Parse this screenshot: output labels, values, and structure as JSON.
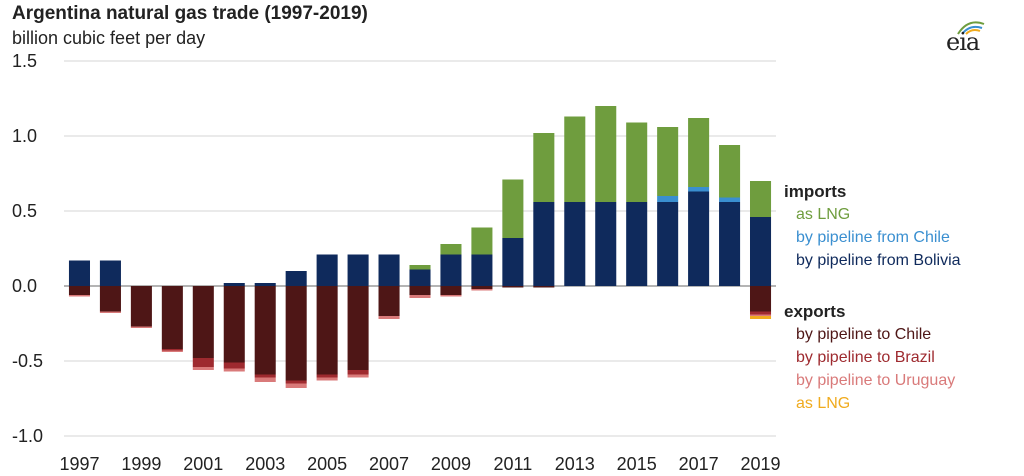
{
  "header": {
    "title": "Argentina natural gas trade (1997-2019)",
    "subtitle": "billion cubic feet per day",
    "logo_text": "eia"
  },
  "legend": {
    "imports_label": "imports",
    "exports_label": "exports",
    "imports": [
      {
        "label": "as LNG",
        "color": "#6f9d3e"
      },
      {
        "label": "by pipeline from Chile",
        "color": "#3a8fd0"
      },
      {
        "label": "by pipeline from Bolivia",
        "color": "#0f2a5c"
      }
    ],
    "exports": [
      {
        "label": "by pipeline to Chile",
        "color": "#4e1616"
      },
      {
        "label": "by pipeline to Brazil",
        "color": "#9e2a2f"
      },
      {
        "label": "by pipeline to Uruguay",
        "color": "#d97a7a"
      },
      {
        "label": "as LNG",
        "color": "#f0ab1e"
      }
    ]
  },
  "chart_data": {
    "type": "bar",
    "stacked": true,
    "title": "Argentina natural gas trade (1997-2019)",
    "ylabel": "billion cubic feet per day",
    "ylim": [
      -1.0,
      1.5
    ],
    "yticks": [
      1.5,
      1.0,
      0.5,
      0.0,
      -0.5,
      -1.0
    ],
    "ytick_labels": [
      "1.5",
      "1.0",
      "0.5",
      "0.0",
      "-0.5",
      "-1.0"
    ],
    "categories": [
      "1997",
      "1998",
      "1999",
      "2000",
      "2001",
      "2002",
      "2003",
      "2004",
      "2005",
      "2006",
      "2007",
      "2008",
      "2009",
      "2010",
      "2011",
      "2012",
      "2013",
      "2014",
      "2015",
      "2016",
      "2017",
      "2018",
      "2019"
    ],
    "xtick_labels": [
      "1997",
      "1999",
      "2001",
      "2003",
      "2005",
      "2007",
      "2009",
      "2011",
      "2013",
      "2015",
      "2017",
      "2019"
    ],
    "imports_series": [
      {
        "name": "by pipeline from Bolivia",
        "color": "#0f2a5c",
        "values": [
          0.17,
          0.17,
          0,
          0,
          0,
          0.02,
          0.02,
          0.1,
          0.21,
          0.21,
          0.21,
          0.11,
          0.21,
          0.21,
          0.32,
          0.56,
          0.56,
          0.56,
          0.56,
          0.56,
          0.63,
          0.56,
          0.46
        ]
      },
      {
        "name": "by pipeline from Chile",
        "color": "#3a8fd0",
        "values": [
          0,
          0,
          0,
          0,
          0,
          0,
          0,
          0,
          0,
          0,
          0,
          0,
          0,
          0,
          0,
          0,
          0,
          0,
          0,
          0.04,
          0.03,
          0.03,
          0
        ]
      },
      {
        "name": "as LNG",
        "color": "#6f9d3e",
        "values": [
          0,
          0,
          0,
          0,
          0,
          0,
          0,
          0,
          0,
          0,
          0,
          0.03,
          0.07,
          0.18,
          0.39,
          0.46,
          0.57,
          0.64,
          0.53,
          0.46,
          0.46,
          0.35,
          0.24
        ]
      }
    ],
    "exports_series": [
      {
        "name": "by pipeline to Chile",
        "color": "#4e1616",
        "values": [
          -0.06,
          -0.17,
          -0.27,
          -0.42,
          -0.48,
          -0.51,
          -0.59,
          -0.63,
          -0.59,
          -0.56,
          -0.2,
          -0.06,
          -0.06,
          -0.02,
          -0.01,
          -0.01,
          0,
          0,
          0,
          0,
          0,
          0,
          -0.17
        ]
      },
      {
        "name": "by pipeline to Brazil",
        "color": "#9e2a2f",
        "values": [
          0,
          0,
          0,
          -0.01,
          -0.06,
          -0.04,
          -0.02,
          -0.02,
          -0.02,
          -0.03,
          0,
          0,
          0,
          0,
          0,
          0,
          0,
          0,
          0,
          0,
          0,
          0,
          -0.02
        ]
      },
      {
        "name": "by pipeline to Uruguay",
        "color": "#d97a7a",
        "values": [
          -0.01,
          -0.01,
          -0.01,
          -0.01,
          -0.02,
          -0.02,
          -0.03,
          -0.03,
          -0.02,
          -0.02,
          -0.02,
          -0.02,
          -0.01,
          -0.01,
          0,
          0,
          0,
          0,
          0,
          0,
          0,
          0,
          -0.01
        ]
      },
      {
        "name": "as LNG",
        "color": "#f0ab1e",
        "values": [
          0,
          0,
          0,
          0,
          0,
          0,
          0,
          0,
          0,
          0,
          0,
          0,
          0,
          0,
          0,
          0,
          0,
          0,
          0,
          0,
          0,
          0,
          -0.02
        ]
      }
    ]
  }
}
